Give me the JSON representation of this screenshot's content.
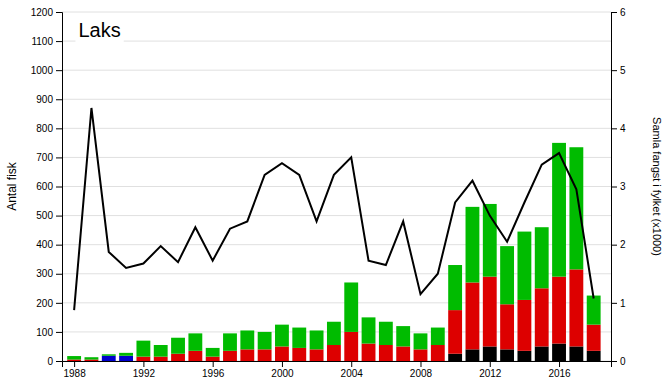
{
  "chart_data": {
    "type": "bar",
    "stacked": true,
    "title": "Laks",
    "ylabel": "Antal fisk",
    "y2label": "Samla fangst i fylket (x1000)",
    "x": [
      1988,
      1989,
      1990,
      1991,
      1992,
      1993,
      1994,
      1995,
      1996,
      1997,
      1998,
      1999,
      2000,
      2001,
      2002,
      2003,
      2004,
      2005,
      2006,
      2007,
      2008,
      2009,
      2010,
      2011,
      2012,
      2013,
      2014,
      2015,
      2016,
      2017,
      2018
    ],
    "series": [
      {
        "color": "#000000",
        "values": [
          0,
          0,
          0,
          0,
          0,
          0,
          0,
          0,
          0,
          0,
          0,
          0,
          0,
          0,
          0,
          0,
          0,
          0,
          0,
          0,
          0,
          0,
          25,
          40,
          50,
          40,
          35,
          50,
          60,
          50,
          35
        ]
      },
      {
        "color": "#0000cc",
        "values": [
          0,
          0,
          18,
          18,
          0,
          0,
          0,
          0,
          0,
          0,
          0,
          0,
          0,
          0,
          0,
          0,
          0,
          0,
          0,
          0,
          0,
          0,
          0,
          0,
          0,
          0,
          0,
          0,
          0,
          0,
          0
        ]
      },
      {
        "color": "#dd0000",
        "values": [
          5,
          5,
          0,
          0,
          15,
          15,
          25,
          35,
          15,
          35,
          40,
          40,
          50,
          45,
          40,
          55,
          100,
          60,
          55,
          50,
          40,
          55,
          150,
          230,
          240,
          155,
          175,
          200,
          230,
          265,
          90
        ]
      },
      {
        "color": "#00bb00",
        "values": [
          12,
          8,
          5,
          10,
          55,
          40,
          55,
          60,
          30,
          60,
          65,
          60,
          75,
          70,
          65,
          80,
          170,
          90,
          80,
          70,
          55,
          60,
          155,
          260,
          250,
          200,
          235,
          210,
          460,
          420,
          100
        ]
      },
      {
        "type": "line",
        "color": "#000000",
        "values": [
          175,
          870,
          375,
          320,
          335,
          395,
          340,
          460,
          345,
          455,
          480,
          640,
          680,
          640,
          480,
          640,
          700,
          345,
          330,
          480,
          230,
          300,
          545,
          620,
          500,
          410,
          545,
          675,
          715,
          590,
          215
        ]
      }
    ],
    "xlim": [
      1987.3,
      2019.0
    ],
    "xticks": [
      1988,
      1992,
      1996,
      2000,
      2004,
      2008,
      2012,
      2016
    ],
    "ylim": [
      0,
      1200
    ],
    "yticks": [
      0,
      100,
      200,
      300,
      400,
      500,
      600,
      700,
      800,
      900,
      1000,
      1100,
      1200
    ],
    "y2lim": [
      0,
      6
    ],
    "y2ticks": [
      0,
      1,
      2,
      3,
      4,
      5,
      6
    ],
    "grid": "y"
  }
}
